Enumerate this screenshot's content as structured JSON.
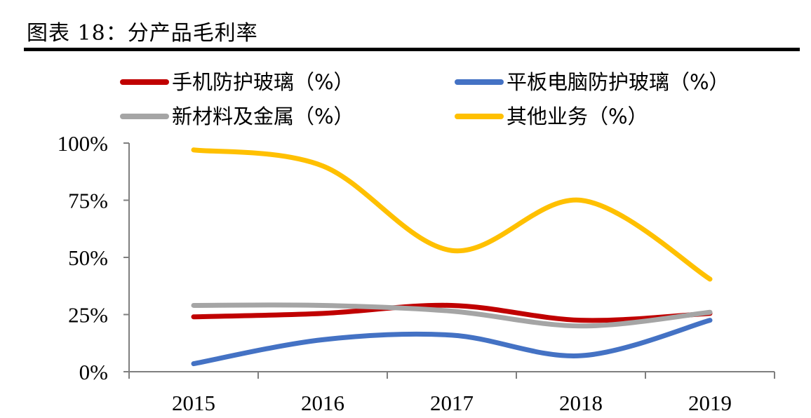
{
  "figure": {
    "title": "图表 18：分产品毛利率"
  },
  "chart_data": {
    "type": "line",
    "categories": [
      "2015",
      "2016",
      "2017",
      "2018",
      "2019"
    ],
    "y_ticks": [
      "0%",
      "25%",
      "50%",
      "75%",
      "100%"
    ],
    "ylim": [
      0,
      100
    ],
    "legend_position": "top",
    "grid": false,
    "series": [
      {
        "name": "手机防护玻璃（%）",
        "color": "#c00000",
        "values": [
          24,
          25.5,
          29,
          22.5,
          25.5
        ]
      },
      {
        "name": "平板电脑防护玻璃（%）",
        "color": "#4472c4",
        "values": [
          3.5,
          14,
          16,
          7,
          22.5
        ]
      },
      {
        "name": "新材料及金属（%）",
        "color": "#a5a5a5",
        "values": [
          29,
          29,
          26.5,
          20,
          26
        ]
      },
      {
        "name": "其他业务（%）",
        "color": "#ffc000",
        "values": [
          97,
          90,
          53,
          75,
          40.5
        ]
      }
    ]
  }
}
